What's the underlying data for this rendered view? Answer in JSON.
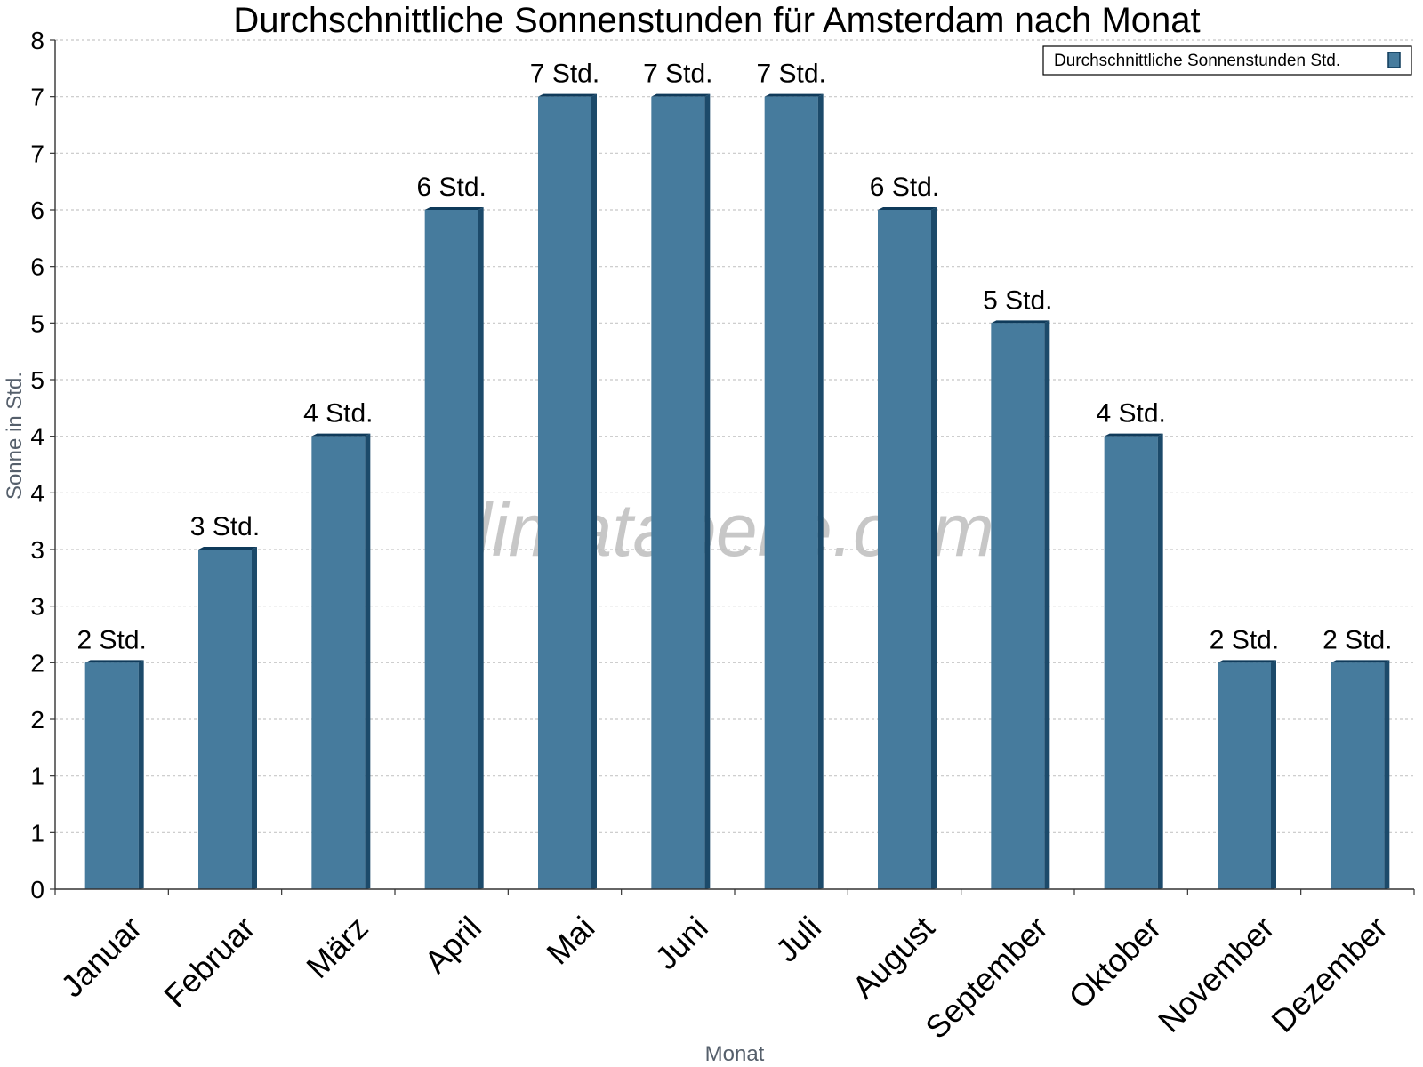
{
  "chart_data": {
    "type": "bar",
    "title": "Durchschnittliche Sonnenstunden für Amsterdam nach Monat",
    "xlabel": "Monat",
    "ylabel": "Sonne in Std.",
    "categories": [
      "Januar",
      "Februar",
      "März",
      "April",
      "Mai",
      "Juni",
      "Juli",
      "August",
      "September",
      "Oktober",
      "November",
      "Dezember"
    ],
    "series": [
      {
        "name": "Durchschnittliche Sonnenstunden Std.",
        "values": [
          2,
          3,
          4,
          6,
          7,
          7,
          7,
          6,
          5,
          4,
          2,
          2
        ],
        "data_labels": [
          "2 Std.",
          "3 Std.",
          "4 Std.",
          "6 Std.",
          "7 Std.",
          "7 Std.",
          "7 Std.",
          "6 Std.",
          "5 Std.",
          "4 Std.",
          "2 Std.",
          "2 Std."
        ]
      }
    ],
    "ylim": [
      0,
      7.5
    ],
    "y_ticks": [
      0,
      0.5,
      1,
      1.5,
      2,
      2.5,
      3,
      3.5,
      4,
      4.5,
      5,
      5.5,
      6,
      6.5,
      7,
      7.5
    ],
    "y_tick_labels": [
      "0",
      "1",
      "1",
      "2",
      "2",
      "3",
      "3",
      "4",
      "4",
      "5",
      "5",
      "6",
      "6",
      "7",
      "7",
      "8"
    ],
    "grid": true,
    "legend_position": "top-right",
    "watermark": "klimatabelle.com",
    "colors": {
      "bar_front": "#467b9d",
      "bar_side": "#1c4a6a",
      "bar_top": "#0f3a5a",
      "grid": "#c8c8c8",
      "axis": "#333333"
    }
  }
}
